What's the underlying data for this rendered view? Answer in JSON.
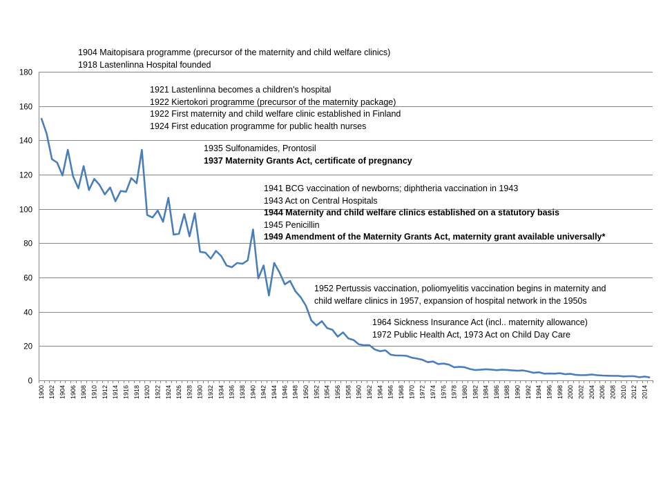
{
  "chart_data": {
    "type": "line",
    "title": "",
    "xlabel": "",
    "ylabel": "",
    "ylim": [
      0,
      180
    ],
    "yticks": [
      0,
      20,
      40,
      60,
      80,
      100,
      120,
      140,
      160,
      180
    ],
    "grid": true,
    "x": [
      1900,
      1901,
      1902,
      1903,
      1904,
      1905,
      1906,
      1907,
      1908,
      1909,
      1910,
      1911,
      1912,
      1913,
      1914,
      1915,
      1916,
      1917,
      1918,
      1919,
      1920,
      1921,
      1922,
      1923,
      1924,
      1925,
      1926,
      1927,
      1928,
      1929,
      1930,
      1931,
      1932,
      1933,
      1934,
      1935,
      1936,
      1937,
      1938,
      1939,
      1940,
      1941,
      1942,
      1943,
      1944,
      1945,
      1946,
      1947,
      1948,
      1949,
      1950,
      1951,
      1952,
      1953,
      1954,
      1955,
      1956,
      1957,
      1958,
      1959,
      1960,
      1961,
      1962,
      1963,
      1964,
      1965,
      1966,
      1967,
      1968,
      1969,
      1970,
      1971,
      1972,
      1973,
      1974,
      1975,
      1976,
      1977,
      1978,
      1979,
      1980,
      1981,
      1982,
      1983,
      1984,
      1985,
      1986,
      1987,
      1988,
      1989,
      1990,
      1991,
      1992,
      1993,
      1994,
      1995,
      1996,
      1997,
      1998,
      1999,
      2000,
      2001,
      2002,
      2003,
      2004,
      2005,
      2006,
      2007,
      2008,
      2009,
      2010,
      2011,
      2012,
      2013,
      2014,
      2015
    ],
    "series": [
      {
        "name": "",
        "color": "#4a7ebb",
        "values": [
          153,
          144,
          129,
          127,
          119.5,
          134.5,
          119,
          112,
          125,
          111,
          117.5,
          114,
          108.5,
          112.5,
          104.5,
          110.5,
          110,
          118,
          115,
          134.5,
          96.5,
          95,
          99,
          92.5,
          106.5,
          85,
          85.5,
          97,
          84,
          97.5,
          75,
          74.5,
          71,
          75.5,
          72.5,
          67,
          66,
          68.5,
          68,
          70,
          88,
          59.5,
          67,
          49.5,
          68.5,
          63,
          56,
          58,
          52,
          48.5,
          43.5,
          35,
          32,
          34.5,
          30.5,
          29.5,
          25.5,
          28,
          24.5,
          23.5,
          21,
          20.5,
          20.5,
          18,
          17,
          17.5,
          15,
          14.5,
          14.5,
          14.3,
          13.2,
          12.7,
          12,
          10.6,
          11,
          9.5,
          9.8,
          9.2,
          7.6,
          7.9,
          7.6,
          6.6,
          6,
          6.2,
          6.5,
          6.3,
          5.9,
          6.2,
          6.1,
          5.8,
          5.6,
          5.8,
          5.2,
          4.4,
          4.7,
          3.9,
          4,
          3.9,
          4.2,
          3.6,
          3.8,
          3.2,
          3,
          3.1,
          3.4,
          3,
          2.8,
          2.7,
          2.6,
          2.6,
          2.3,
          2.4,
          2.4,
          1.8,
          2.2,
          1.7
        ]
      }
    ],
    "x_tick_label_step": 2,
    "annotations": [
      {
        "lines": [
          {
            "text": "1904 Maitopisara programme (precursor of the maternity and child welfare clinics)",
            "bold": false
          },
          {
            "text": "1918 Lastenlinna Hospital founded",
            "bold": false
          }
        ]
      },
      {
        "lines": [
          {
            "text": "1921 Lastenlinna becomes a children's hospital",
            "bold": false
          },
          {
            "text": "1922 Kiertokori programme (precursor of the maternity package)",
            "bold": false
          },
          {
            "text": "1922 First maternity and child welfare clinic established in Finland",
            "bold": false
          },
          {
            "text": "1924 First education programme for public health nurses",
            "bold": false
          }
        ]
      },
      {
        "lines": [
          {
            "text": "1935 Sulfonamides,  Prontosil",
            "bold": false
          },
          {
            "text": "1937 Maternity Grants Act, certificate of pregnancy",
            "bold": true
          }
        ]
      },
      {
        "lines": [
          {
            "text": "1941 BCG vaccination of newborns; diphtheria vaccination in 1943",
            "bold": false
          },
          {
            "text": "1943 Act on Central Hospitals",
            "bold": false
          },
          {
            "text": "1944 Maternity and child welfare  clinics established on a statutory basis",
            "bold": true
          },
          {
            "text": "1945 Penicillin",
            "bold": false
          },
          {
            "text": "1949 Amendment of the Maternity Grants Act, maternity grant available universally*",
            "bold": true
          }
        ]
      },
      {
        "lines": [
          {
            "text": "1952 Pertussis vaccination, poliomyelitis vaccination begins in maternity and",
            "bold": false
          },
          {
            "text": "child welfare clinics in 1957, expansion of hospital network in the 1950s",
            "bold": false
          }
        ]
      },
      {
        "lines": [
          {
            "text": "1964 Sickness Insurance Act (incl.. maternity allowance)",
            "bold": false
          },
          {
            "text": "1972 Public Health Act, 1973 Act on Child Day Care",
            "bold": false
          }
        ]
      }
    ]
  }
}
